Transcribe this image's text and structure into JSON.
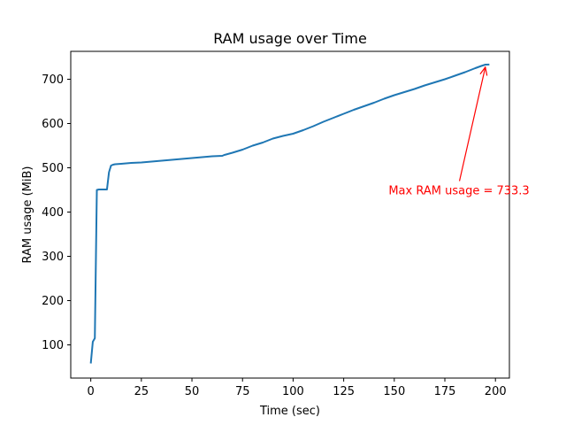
{
  "chart_data": {
    "type": "line",
    "title": "RAM usage over Time",
    "xlabel": "Time (sec)",
    "ylabel": "RAM usage (MiB)",
    "xlim": [
      -9.9,
      206.9
    ],
    "ylim": [
      25,
      763
    ],
    "xticks": [
      0,
      25,
      50,
      75,
      100,
      125,
      150,
      175,
      200
    ],
    "yticks": [
      100,
      200,
      300,
      400,
      500,
      600,
      700
    ],
    "grid": false,
    "colors": {
      "line": "#1f77b4",
      "annotation": "#ff0000"
    },
    "series": [
      {
        "x": [
          0,
          1,
          2,
          3,
          4,
          5,
          6,
          7,
          8,
          9,
          10,
          11,
          12,
          15,
          20,
          25,
          30,
          35,
          40,
          45,
          50,
          55,
          60,
          65,
          66,
          70,
          75,
          80,
          85,
          90,
          95,
          100,
          105,
          110,
          115,
          120,
          125,
          130,
          135,
          140,
          145,
          150,
          155,
          160,
          165,
          170,
          175,
          180,
          185,
          190,
          193,
          195,
          197
        ],
        "values": [
          58,
          107,
          115,
          450,
          451,
          451,
          451,
          451,
          451,
          490,
          505,
          507,
          508,
          509,
          511,
          512,
          514,
          516,
          518,
          520,
          522,
          524,
          526,
          527,
          529,
          534,
          541,
          550,
          557,
          566,
          572,
          577,
          585,
          594,
          604,
          613,
          622,
          631,
          639,
          647,
          656,
          664,
          671,
          678,
          686,
          693,
          700,
          708,
          716,
          725,
          730,
          733,
          733.3
        ]
      }
    ],
    "annotations": [
      {
        "text": "Max RAM usage = 733.3",
        "x": 195,
        "y": 733.3,
        "text_x": 182,
        "text_y": 440
      }
    ]
  }
}
